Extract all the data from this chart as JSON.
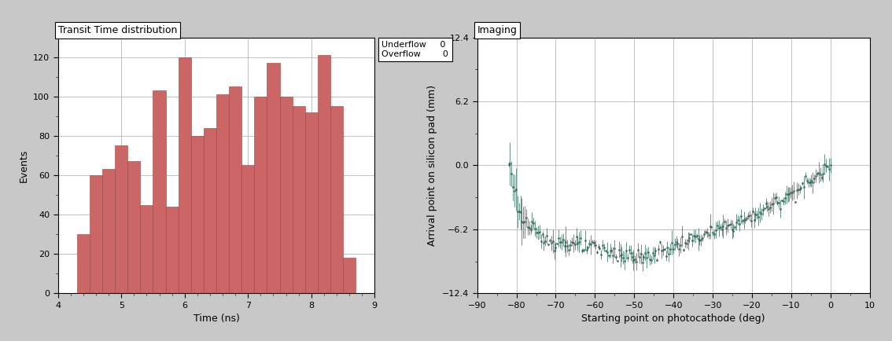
{
  "hist_title": "Transit Time distribution",
  "hist_xlabel": "Time (ns)",
  "hist_ylabel": "Events",
  "hist_xlim": [
    4,
    9
  ],
  "hist_ylim": [
    0,
    130
  ],
  "hist_yticks": [
    0,
    20,
    40,
    60,
    80,
    100,
    120
  ],
  "hist_xticks": [
    4,
    5,
    6,
    7,
    8,
    9
  ],
  "hist_bar_color": "#CC6666",
  "hist_edge_color": "#994444",
  "underflow": 0,
  "overflow": 0,
  "hist_bin_edges": [
    4.3,
    4.5,
    4.7,
    4.9,
    5.1,
    5.3,
    5.5,
    5.7,
    5.9,
    6.1,
    6.3,
    6.5,
    6.7,
    6.9,
    7.1,
    7.3,
    7.5,
    7.7,
    7.9,
    8.1,
    8.3,
    8.5,
    8.7
  ],
  "hist_values": [
    30,
    60,
    63,
    75,
    67,
    45,
    103,
    44,
    120,
    80,
    84,
    101,
    105,
    65,
    100,
    117,
    100,
    95,
    92,
    121,
    95,
    18,
    0
  ],
  "scatter_title": "Imaging",
  "scatter_xlabel": "Starting point on photocathode (deg)",
  "scatter_ylabel": "Arrival point on silicon pad (mm)",
  "scatter_xlim": [
    -90,
    10
  ],
  "scatter_ylim": [
    -12.4,
    12.4
  ],
  "scatter_xticks": [
    -90,
    -80,
    -70,
    -60,
    -50,
    -40,
    -30,
    -20,
    -10,
    0,
    10
  ],
  "scatter_yticks": [
    -12.4,
    -6.2,
    0,
    6.2,
    12.4
  ],
  "scatter_color": "#336655",
  "bg_color": "#C8C8C8"
}
